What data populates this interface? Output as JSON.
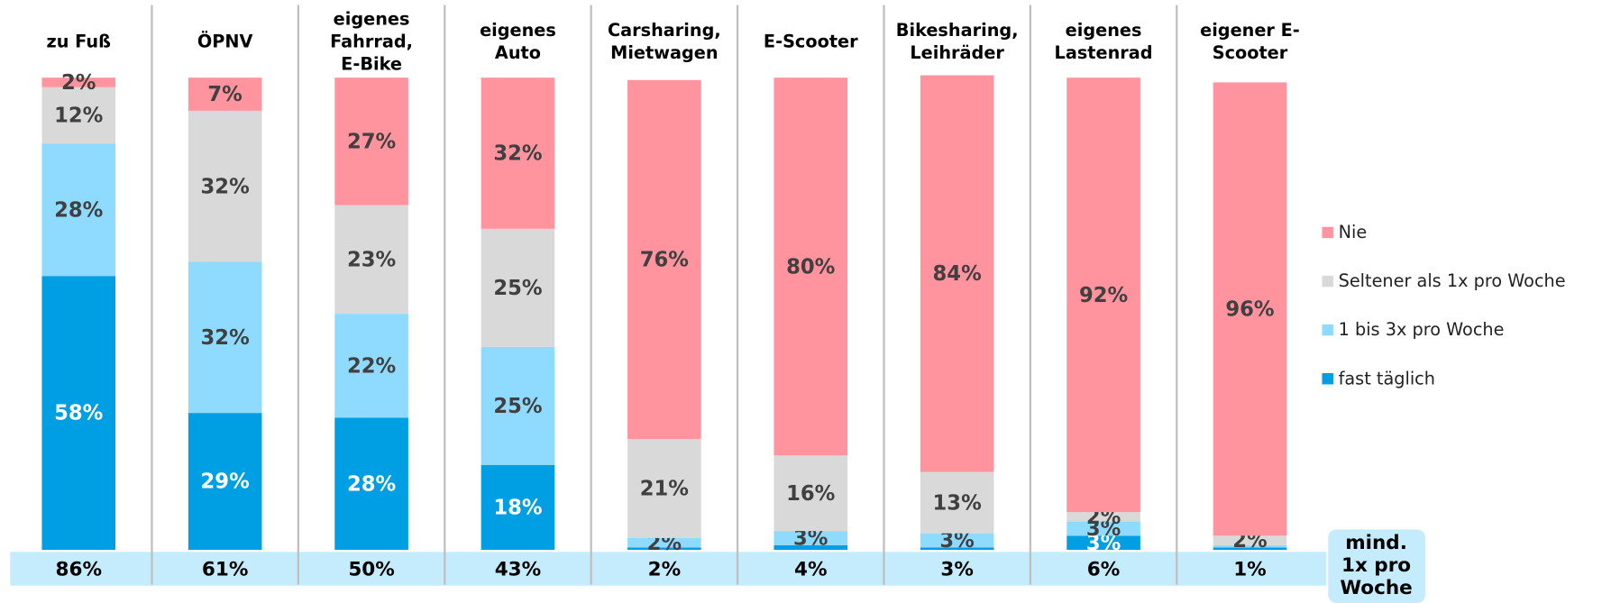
{
  "chart_data": {
    "type": "stacked_bar",
    "categories": [
      "zu Fuß",
      "ÖPNV",
      "eigenes\nFahrrad,\nE-Bike",
      "eigenes\nAuto",
      "Carsharing,\nMietwagen",
      "E-Scooter",
      "Bikesharing,\nLeihräder",
      "eigenes\nLastenrad",
      "eigener E-\nScooter"
    ],
    "series": [
      {
        "name": "fast täglich",
        "color": "#009fe3",
        "values": [
          58,
          29,
          28,
          18,
          0.5,
          1,
          0.5,
          3,
          0.5
        ],
        "value_labels": [
          "58%",
          "29%",
          "28%",
          "18%",
          null,
          null,
          null,
          "3%",
          null
        ]
      },
      {
        "name": "1 bis 3x pro Woche",
        "color": "#8fdbff",
        "values": [
          28,
          32,
          22,
          25,
          2,
          3,
          3,
          3,
          0.5
        ],
        "value_labels": [
          "28%",
          "32%",
          "22%",
          "25%",
          "2%",
          "3%",
          "3%",
          "3%",
          null
        ]
      },
      {
        "name": "Seltener als 1x pro Woche",
        "color": "#d9d9d9",
        "values": [
          12,
          32,
          23,
          25,
          21,
          16,
          13,
          2,
          2
        ],
        "value_labels": [
          "12%",
          "32%",
          "23%",
          "25%",
          "21%",
          "16%",
          "13%",
          "2%",
          "2%"
        ]
      },
      {
        "name": "Nie",
        "color": "#ff939e",
        "values": [
          2,
          7,
          27,
          32,
          76,
          80,
          84,
          92,
          96
        ],
        "value_labels": [
          "2%",
          "7%",
          "27%",
          "32%",
          "76%",
          "80%",
          "84%",
          "92%",
          "96%"
        ]
      }
    ],
    "ylim": [
      0,
      100
    ],
    "totals": {
      "label": "mind.\n1x pro\nWoche",
      "color": "#c5ecfd",
      "values": [
        86,
        61,
        50,
        43,
        2,
        4,
        3,
        6,
        1
      ],
      "value_labels": [
        "86%",
        "61%",
        "50%",
        "43%",
        "2%",
        "4%",
        "3%",
        "6%",
        "1%"
      ]
    }
  }
}
